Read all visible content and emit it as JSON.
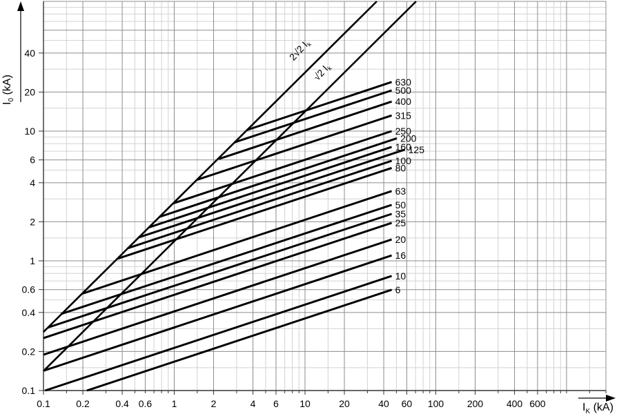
{
  "chart_data": {
    "type": "line",
    "scale": "log-log",
    "title": "",
    "xlabel": {
      "symbol": "I",
      "sub": "K",
      "unit": " (kA)"
    },
    "ylabel": {
      "symbol": "I",
      "sub": "0",
      "unit": " (kA)"
    },
    "x_range": [
      0.1,
      2000
    ],
    "y_range": [
      0.1,
      100
    ],
    "x_tick_labels": [
      "0.1",
      "0.2",
      "0.4",
      "0.6",
      "1",
      "2",
      "4",
      "6",
      "10",
      "20",
      "40",
      "60",
      "100",
      "200",
      "400",
      "600"
    ],
    "y_tick_labels": [
      "0.1",
      "0.2",
      "0.4",
      "0.6",
      "1",
      "2",
      "4",
      "6",
      "10",
      "20",
      "40"
    ],
    "grid": {
      "minor_mantissas": [
        1.5,
        3,
        5,
        7,
        8,
        9
      ],
      "major_mantissas": [
        1,
        2,
        4,
        6
      ],
      "major_color": "#8c8c8c",
      "minor_color": "#d2d2d2"
    },
    "reference_lines": [
      {
        "name": "peak-asymmetrical",
        "label_main": "2√2 I",
        "label_sub": "k",
        "factor": 2.828
      },
      {
        "name": "peak-symmetrical",
        "label_main": "√2 I",
        "label_sub": "k",
        "factor": 1.414
      }
    ],
    "series": [
      {
        "rating": "630",
        "points": [
          [
            3.6,
            10.2
          ],
          [
            46,
            23.9
          ]
        ]
      },
      {
        "rating": "500",
        "points": [
          [
            2.9,
            8.2
          ],
          [
            46,
            20.6
          ]
        ]
      },
      {
        "rating": "400",
        "points": [
          [
            2.2,
            6.1
          ],
          [
            46,
            16.9
          ]
        ]
      },
      {
        "rating": "315",
        "points": [
          [
            1.5,
            4.22
          ],
          [
            46,
            13.2
          ]
        ]
      },
      {
        "rating": "250",
        "points": [
          [
            0.98,
            2.77
          ],
          [
            46,
            10.0
          ]
        ]
      },
      {
        "rating": "200",
        "points": [
          [
            0.77,
            2.18
          ],
          [
            50.4,
            8.8
          ]
        ]
      },
      {
        "rating": "160",
        "points": [
          [
            0.64,
            1.81
          ],
          [
            46,
            7.55
          ]
        ]
      },
      {
        "rating": "125",
        "points": [
          [
            0.53,
            1.51
          ],
          [
            58,
            7.2
          ]
        ]
      },
      {
        "rating": "100",
        "points": [
          [
            0.44,
            1.25
          ],
          [
            46,
            5.9
          ]
        ]
      },
      {
        "rating": "80",
        "points": [
          [
            0.37,
            1.04
          ],
          [
            46,
            5.2
          ]
        ]
      },
      {
        "rating": "63",
        "points": [
          [
            0.2,
            0.56
          ],
          [
            46,
            3.45
          ]
        ]
      },
      {
        "rating": "50",
        "points": [
          [
            0.136,
            0.389
          ],
          [
            46,
            2.7
          ]
        ]
      },
      {
        "rating": "35",
        "points": [
          [
            0.108,
            0.306
          ],
          [
            46,
            2.3
          ]
        ]
      },
      {
        "rating": "25",
        "points": [
          [
            0.1,
            0.254
          ],
          [
            46,
            1.96
          ]
        ]
      },
      {
        "rating": "20",
        "points": [
          [
            0.1,
            0.189
          ],
          [
            46,
            1.46
          ]
        ]
      },
      {
        "rating": "16",
        "points": [
          [
            0.1,
            0.142
          ],
          [
            46,
            1.1
          ]
        ]
      },
      {
        "rating": "10",
        "points": [
          [
            0.103,
            0.1
          ],
          [
            46,
            0.764
          ]
        ]
      },
      {
        "rating": "6",
        "points": [
          [
            0.215,
            0.1
          ],
          [
            46,
            0.598
          ]
        ]
      }
    ],
    "line_color": "#000000",
    "background": "#ffffff"
  }
}
